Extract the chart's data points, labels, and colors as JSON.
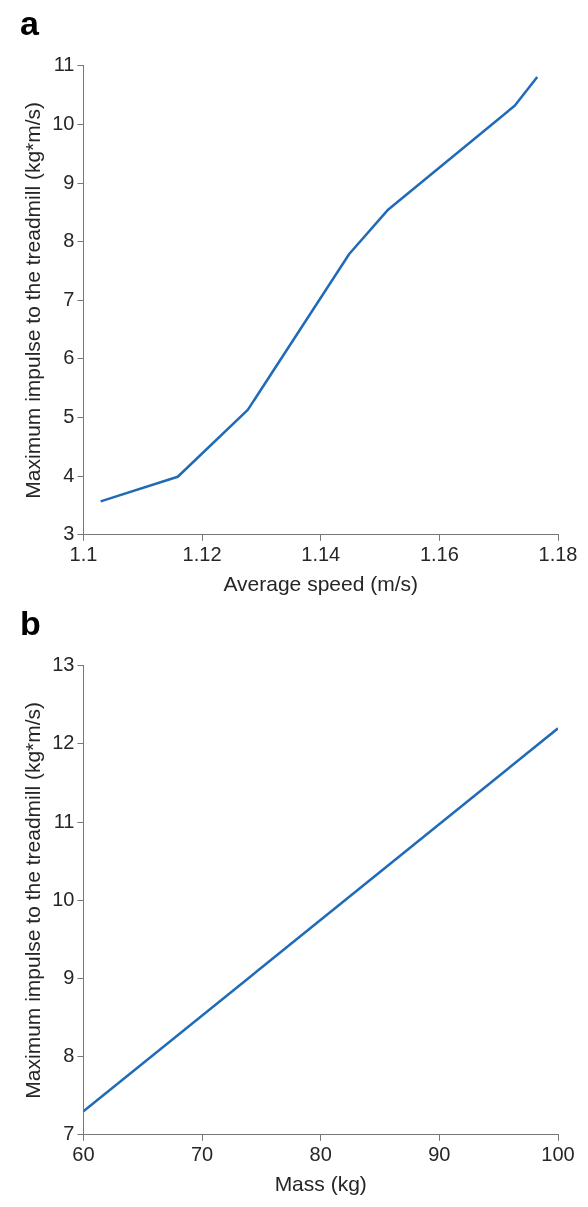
{
  "chart_data": [
    {
      "type": "line",
      "title": "a",
      "xlabel": "Average speed (m/s)",
      "ylabel": "Maximum impulse to the treadmill (kg*m/s)",
      "xlim": [
        1.1,
        1.18
      ],
      "xticks": [
        1.1,
        1.12,
        1.14,
        1.16,
        1.18
      ],
      "ylim": [
        3,
        11
      ],
      "yticks": [
        3,
        4,
        5,
        6,
        7,
        8,
        9,
        10,
        11
      ],
      "grid": false,
      "legend": false,
      "marker": "none",
      "series": [
        {
          "color": "#1f6bb8",
          "x": [
            1.1029,
            1.1159,
            1.1277,
            1.1448,
            1.1514,
            1.1727,
            1.1765
          ],
          "values": [
            3.57,
            3.99,
            5.13,
            7.79,
            8.55,
            10.32,
            10.81
          ]
        }
      ]
    },
    {
      "type": "line",
      "title": "b",
      "xlabel": "Mass (kg)",
      "ylabel": "Maximum impulse to the treadmill (kg*m/s)",
      "xlim": [
        60,
        100
      ],
      "xticks": [
        60,
        70,
        80,
        90,
        100
      ],
      "ylim": [
        7,
        13
      ],
      "yticks": [
        7,
        8,
        9,
        10,
        11,
        12,
        13
      ],
      "grid": false,
      "legend": false,
      "marker": "none",
      "series": [
        {
          "color": "#1f6bb8",
          "x": [
            60,
            100
          ],
          "values": [
            7.3,
            12.2
          ]
        }
      ]
    }
  ]
}
